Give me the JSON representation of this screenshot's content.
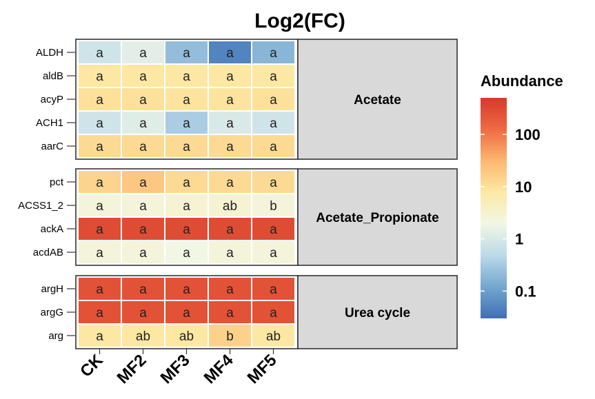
{
  "chart_data": {
    "type": "heatmap",
    "title": "Log2(FC)",
    "columns": [
      "CK",
      "MF2",
      "MF3",
      "MF4",
      "MF5"
    ],
    "legend": {
      "title": "Abundance",
      "scale": "log",
      "ticks": [
        0.1,
        1,
        10,
        100
      ],
      "tick_labels": [
        "0.1",
        "1",
        "10",
        "100"
      ],
      "range": [
        0.03,
        500
      ],
      "colors": [
        "#3f6fb5",
        "#74a7cf",
        "#bcd9e9",
        "#f1f7e6",
        "#fde9a4",
        "#fbb870",
        "#ef6a45",
        "#d63a2a"
      ]
    },
    "panels": [
      {
        "label": "Acetate",
        "rows": [
          {
            "name": "ALDH",
            "values": [
              0.8,
              1.3,
              0.22,
              0.05,
              0.18
            ],
            "letters": [
              "a",
              "a",
              "a",
              "a",
              "a"
            ]
          },
          {
            "name": "aldB",
            "values": [
              8,
              8,
              8,
              8,
              8
            ],
            "letters": [
              "a",
              "a",
              "a",
              "a",
              "a"
            ]
          },
          {
            "name": "acyP",
            "values": [
              10,
              10,
              9,
              9,
              10
            ],
            "letters": [
              "a",
              "a",
              "a",
              "a",
              "a"
            ]
          },
          {
            "name": "ACH1",
            "values": [
              0.8,
              1.2,
              0.35,
              1.0,
              0.8
            ],
            "letters": [
              "a",
              "a",
              "a",
              "a",
              "a"
            ]
          },
          {
            "name": "aarC",
            "values": [
              12,
              12,
              12,
              12,
              12
            ],
            "letters": [
              "a",
              "a",
              "a",
              "a",
              "a"
            ]
          }
        ]
      },
      {
        "label": "Acetate_Propionate",
        "rows": [
          {
            "name": "pct",
            "values": [
              14,
              20,
              12,
              12,
              12
            ],
            "letters": [
              "a",
              "a",
              "a",
              "a",
              "a"
            ]
          },
          {
            "name": "ACSS1_2",
            "values": [
              2.5,
              2.5,
              3,
              3,
              2.5
            ],
            "letters": [
              "a",
              "a",
              "a",
              "ab",
              "b"
            ]
          },
          {
            "name": "ackA",
            "values": [
              300,
              300,
              300,
              300,
              300
            ],
            "letters": [
              "a",
              "a",
              "a",
              "a",
              "a"
            ]
          },
          {
            "name": "acdAB",
            "values": [
              2.5,
              2.5,
              2,
              2.5,
              2.5
            ],
            "letters": [
              "a",
              "a",
              "a",
              "a",
              "a"
            ]
          }
        ]
      },
      {
        "label": "Urea cycle",
        "rows": [
          {
            "name": "argH",
            "values": [
              250,
              250,
              250,
              250,
              250
            ],
            "letters": [
              "a",
              "a",
              "a",
              "a",
              "a"
            ]
          },
          {
            "name": "argG",
            "values": [
              250,
              250,
              250,
              250,
              250
            ],
            "letters": [
              "a",
              "a",
              "a",
              "a",
              "a"
            ]
          },
          {
            "name": "arg",
            "values": [
              8,
              8,
              8,
              15,
              8
            ],
            "letters": [
              "a",
              "ab",
              "ab",
              "b",
              "ab"
            ]
          }
        ]
      }
    ]
  }
}
